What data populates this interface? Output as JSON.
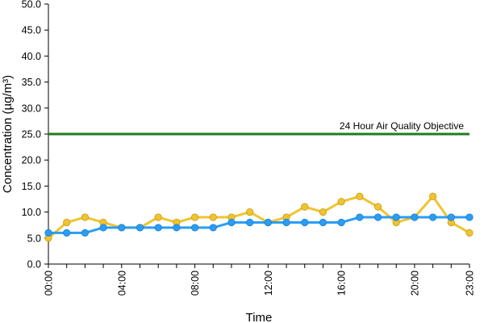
{
  "chart_data": {
    "type": "line",
    "title": "",
    "xlabel": "Time",
    "ylabel": "Concentration (µg/m³)",
    "ylim": [
      0,
      50
    ],
    "yticks": [
      "0.0",
      "5.0",
      "10.0",
      "15.0",
      "20.0",
      "25.0",
      "30.0",
      "35.0",
      "40.0",
      "45.0",
      "50.0"
    ],
    "x": [
      "00:00",
      "01:00",
      "02:00",
      "03:00",
      "04:00",
      "05:00",
      "06:00",
      "07:00",
      "08:00",
      "09:00",
      "10:00",
      "11:00",
      "12:00",
      "13:00",
      "14:00",
      "15:00",
      "16:00",
      "17:00",
      "18:00",
      "19:00",
      "20:00",
      "21:00",
      "22:00",
      "23:00"
    ],
    "xtick_labels": [
      "00:00",
      "04:00",
      "08:00",
      "12:00",
      "16:00",
      "20:00",
      "23:00"
    ],
    "grid": false,
    "legend": "none",
    "series": [
      {
        "color": "#f0c430",
        "values": [
          5,
          8,
          9,
          8,
          7,
          7,
          9,
          8,
          9,
          9,
          9,
          10,
          8,
          9,
          11,
          10,
          12,
          13,
          11,
          8,
          9,
          13,
          8,
          6
        ]
      },
      {
        "color": "#2a9df4",
        "values": [
          6,
          6,
          6,
          7,
          7,
          7,
          7,
          7,
          7,
          7,
          8,
          8,
          8,
          8,
          8,
          8,
          8,
          9,
          9,
          9,
          9,
          9,
          9,
          9
        ]
      }
    ],
    "reference_line": {
      "label": "24 Hour Air Quality Objective",
      "value": 25,
      "color": "#1e7d1e"
    }
  }
}
